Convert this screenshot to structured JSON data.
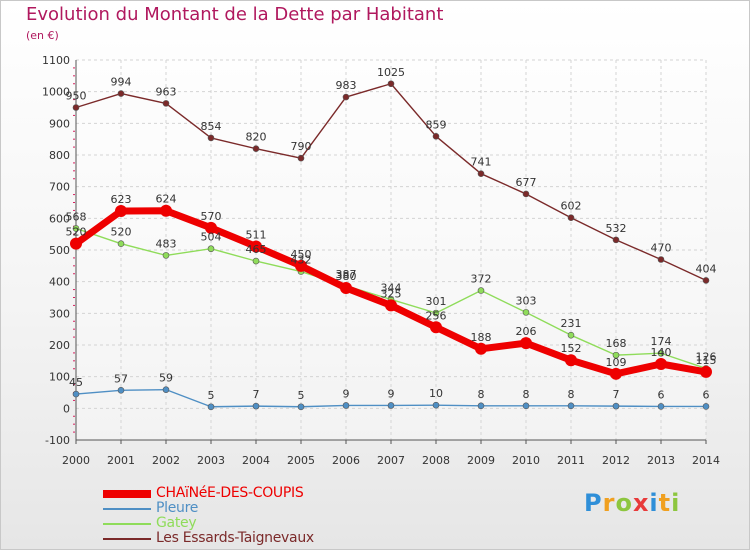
{
  "title": "Evolution du Montant de la Dette par Habitant",
  "subtitle": "(en €)",
  "logo_text": "Proxiti",
  "chart_data": {
    "type": "line",
    "title": "Evolution du Montant de la Dette par Habitant",
    "subtitle": "(en €)",
    "x": [
      "2000",
      "2001",
      "2002",
      "2003",
      "2004",
      "2005",
      "2006",
      "2007",
      "2008",
      "2009",
      "2010",
      "2011",
      "2012",
      "2013",
      "2014"
    ],
    "ylim": [
      -100,
      1100
    ],
    "yticks": [
      "-100",
      "0",
      "100",
      "200",
      "300",
      "400",
      "500",
      "600",
      "700",
      "800",
      "900",
      "1000",
      "1100"
    ],
    "grid": true,
    "legend_position": "bottom-left",
    "series": [
      {
        "name": "CHAïNéE-DES-COUPIS",
        "color": "#ee0000",
        "values": [
          520,
          623,
          624,
          570,
          511,
          450,
          380,
          325,
          256,
          188,
          206,
          152,
          109,
          140,
          115
        ],
        "labels": [
          "520",
          "623",
          "624",
          "570",
          "511",
          "450",
          "380",
          "325",
          "256",
          "188",
          "206",
          "152",
          "109",
          "140",
          "115"
        ]
      },
      {
        "name": "Pleure",
        "color": "#4f8fc4",
        "values": [
          45,
          57,
          59,
          5,
          7,
          5,
          9,
          9,
          10,
          8,
          8,
          8,
          7,
          6,
          6
        ],
        "labels": [
          "45",
          "57",
          "59",
          "5",
          "7",
          "5",
          "9",
          "9",
          "10",
          "8",
          "8",
          "8",
          "7",
          "6",
          "6"
        ]
      },
      {
        "name": "Gatey",
        "color": "#8fdc5a",
        "values": [
          568,
          520,
          483,
          504,
          465,
          432,
          387,
          344,
          301,
          372,
          303,
          231,
          168,
          174,
          126
        ],
        "labels": [
          "568",
          "520",
          "483",
          "504",
          "465",
          "432",
          "387",
          "344",
          "301",
          "372",
          "303",
          "231",
          "168",
          "174",
          "126"
        ]
      },
      {
        "name": "Les Essards-Taignevaux",
        "color": "#7b2a2a",
        "values": [
          950,
          994,
          963,
          854,
          820,
          790,
          983,
          1025,
          859,
          741,
          677,
          602,
          532,
          470,
          404
        ],
        "labels": [
          "950",
          "994",
          "963",
          "854",
          "820",
          "790",
          "983",
          "1025",
          "859",
          "741",
          "677",
          "602",
          "532",
          "470",
          "404"
        ]
      }
    ]
  }
}
